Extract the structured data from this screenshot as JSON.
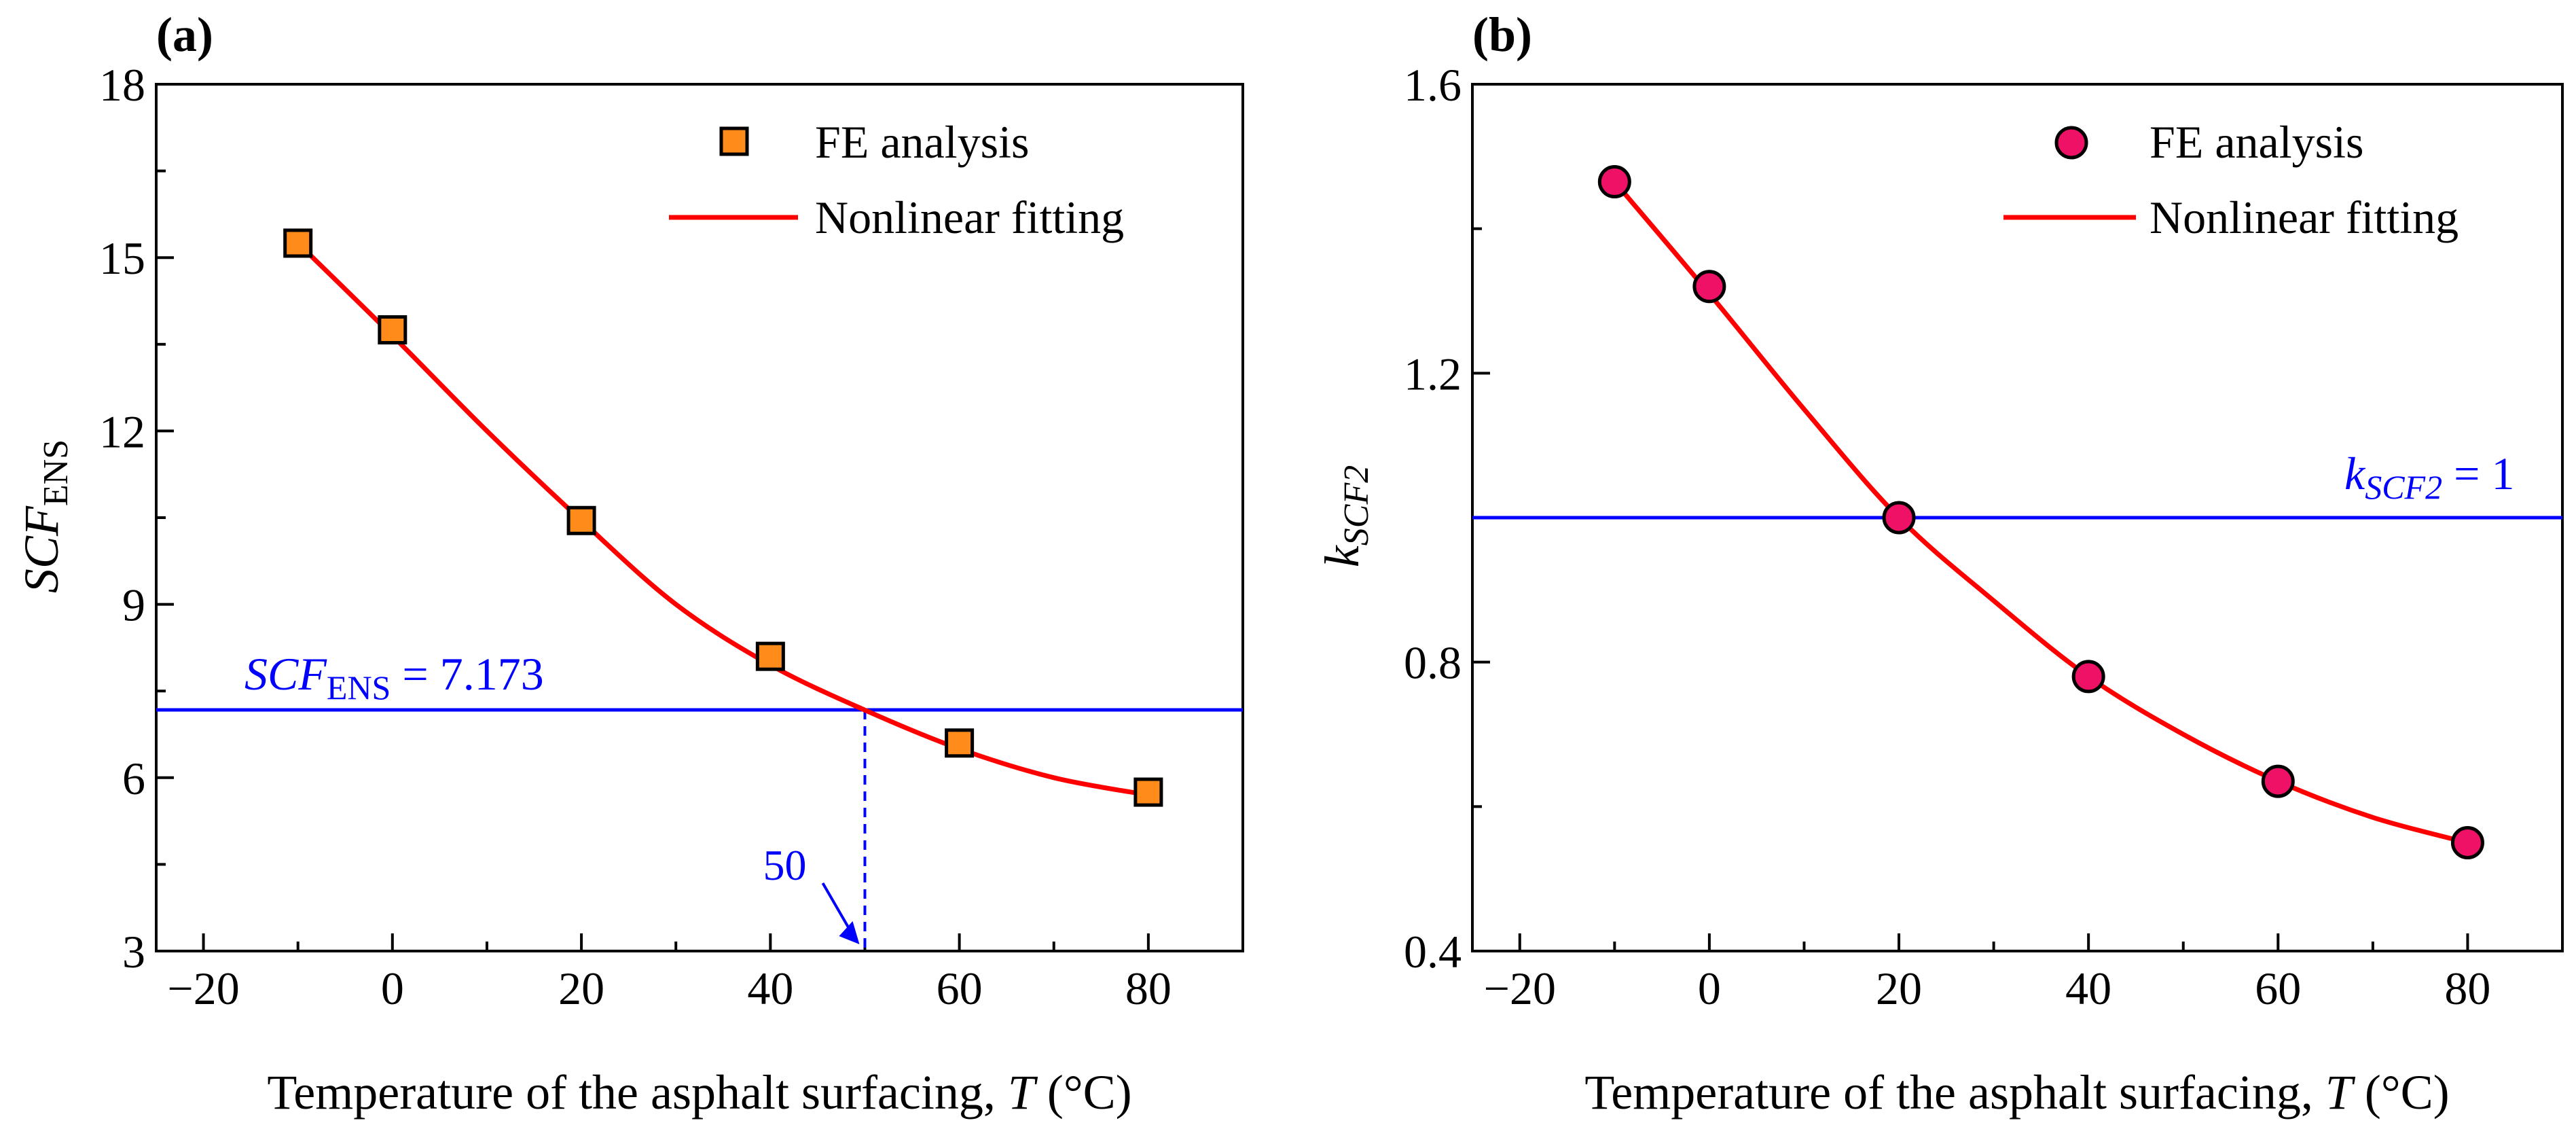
{
  "colors": {
    "axis": "#000000",
    "fit_line": "#ff0000",
    "reference": "#0000ff",
    "marker_a": "#ff8c1a",
    "marker_b": "#ee1166",
    "marker_edge": "#000000"
  },
  "panels": [
    {
      "label": "(a)",
      "xlabel": {
        "main": "Temperature of the asphalt surfacing, ",
        "var": "T",
        "unit": " (°C)"
      },
      "ylabel": {
        "main": "SCF",
        "sub": "ENS"
      },
      "legend": {
        "marker_label": "FE analysis",
        "line_label": "Nonlinear fitting",
        "position": "top-right"
      },
      "reference": {
        "main": "SCF",
        "sub": "ENS",
        "rest": " = 7.173",
        "value": 7.173,
        "drop_x": 50,
        "drop_label": "50"
      }
    },
    {
      "label": "(b)",
      "xlabel": {
        "main": "Temperature of the asphalt surfacing, ",
        "var": "T",
        "unit": " (°C)"
      },
      "ylabel": {
        "main": "k",
        "sub": "SCF2"
      },
      "legend": {
        "marker_label": "FE analysis",
        "line_label": "Nonlinear fitting",
        "position": "top-right"
      },
      "reference": {
        "main": "k",
        "sub": "SCF2",
        "rest": " = 1",
        "value": 1
      }
    }
  ],
  "chart_data": [
    {
      "type": "scatter",
      "marker": "square",
      "x": [
        -10,
        0,
        20,
        40,
        60,
        80
      ],
      "y": [
        15.25,
        13.75,
        10.45,
        8.1,
        6.6,
        5.75
      ],
      "fit": {
        "x": [
          -10,
          0,
          10,
          20,
          30,
          40,
          50,
          60,
          70,
          80
        ],
        "y": [
          15.25,
          13.65,
          12.0,
          10.45,
          9.0,
          7.95,
          7.17,
          6.5,
          6.0,
          5.7
        ]
      },
      "xlim": [
        -25,
        90
      ],
      "ylim": [
        3,
        18
      ],
      "xticks": [
        -20,
        0,
        20,
        40,
        60,
        80
      ],
      "xtick_labels": [
        "−20",
        "0",
        "20",
        "40",
        "60",
        "80"
      ],
      "yticks": [
        3,
        6,
        9,
        12,
        15,
        18
      ],
      "ytick_labels": [
        "3",
        "6",
        "9",
        "12",
        "15",
        "18"
      ],
      "grid": false
    },
    {
      "type": "scatter",
      "marker": "circle",
      "x": [
        -10,
        0,
        20,
        40,
        60,
        80
      ],
      "y": [
        1.465,
        1.32,
        1.0,
        0.78,
        0.635,
        0.55
      ],
      "fit": {
        "x": [
          -10,
          0,
          10,
          20,
          30,
          40,
          50,
          60,
          70,
          80
        ],
        "y": [
          1.465,
          1.31,
          1.15,
          1.0,
          0.885,
          0.78,
          0.7,
          0.635,
          0.585,
          0.55
        ]
      },
      "xlim": [
        -25,
        90
      ],
      "ylim": [
        0.4,
        1.6
      ],
      "xticks": [
        -20,
        0,
        20,
        40,
        60,
        80
      ],
      "xtick_labels": [
        "−20",
        "0",
        "20",
        "40",
        "60",
        "80"
      ],
      "yticks": [
        0.4,
        0.8,
        1.2,
        1.6
      ],
      "ytick_labels": [
        "0.4",
        "0.8",
        "1.2",
        "1.6"
      ],
      "grid": false
    }
  ]
}
